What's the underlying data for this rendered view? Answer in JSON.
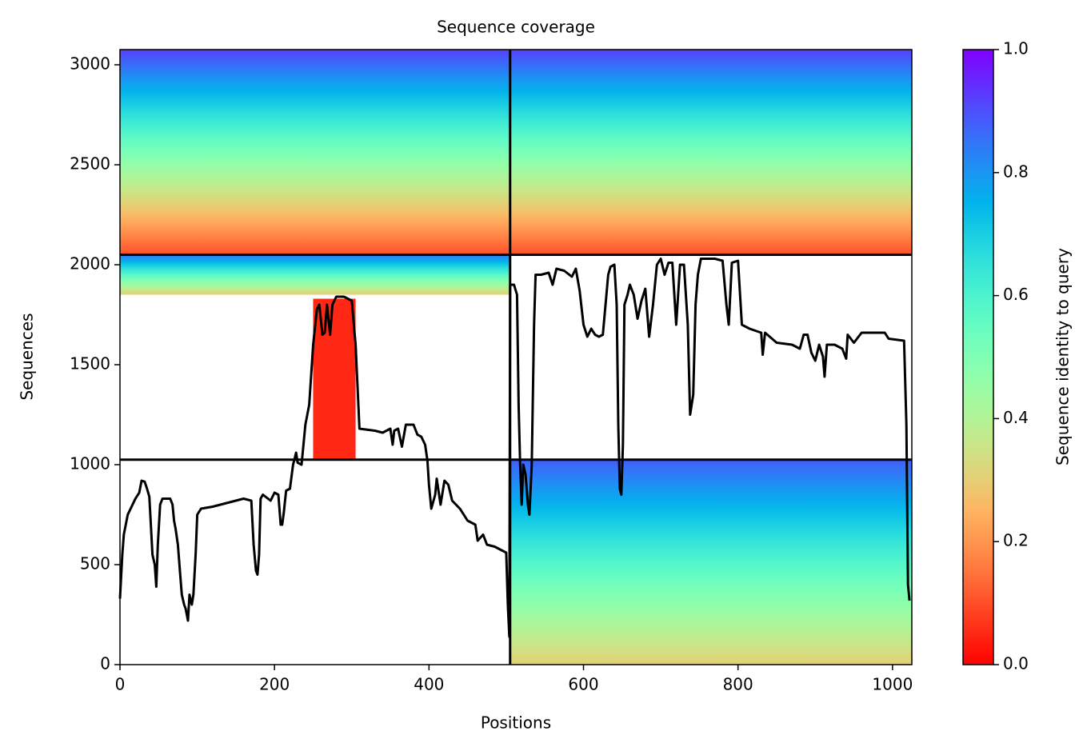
{
  "chart_data": {
    "type": "coverage",
    "title": "Sequence coverage",
    "xlabel": "Positions",
    "ylabel": "Sequences",
    "xlim": [
      0,
      1025
    ],
    "ylim": [
      0,
      3076
    ],
    "xticks": [
      0,
      200,
      400,
      600,
      800,
      1000
    ],
    "yticks": [
      0,
      500,
      1000,
      1500,
      2000,
      2500,
      3000
    ],
    "colormap": "rainbow_r",
    "colorbar": {
      "label": "Sequence identity to query",
      "lim": [
        0,
        1
      ],
      "ticks": [
        {
          "value": 0,
          "label": "0.0"
        },
        {
          "value": 0.2,
          "label": "0.2"
        },
        {
          "value": 0.4,
          "label": "0.4"
        },
        {
          "value": 0.6,
          "label": "0.6"
        },
        {
          "value": 0.8,
          "label": "0.8"
        },
        {
          "value": 1,
          "label": "1.0"
        }
      ]
    },
    "blocks": [
      {
        "x": [
          0,
          505
        ],
        "y": [
          2050,
          3076
        ],
        "identity": [
          0.1,
          0.92
        ]
      },
      {
        "x": [
          505,
          1025
        ],
        "y": [
          2050,
          3076
        ],
        "identity": [
          0.1,
          0.92
        ]
      },
      {
        "x": [
          0,
          505
        ],
        "y": [
          1850,
          2050
        ],
        "identity": [
          0.3,
          0.85
        ]
      },
      {
        "x": [
          250,
          305
        ],
        "y": [
          1030,
          1830
        ],
        "identity": [
          0.05,
          0.05
        ]
      },
      {
        "x": [
          505,
          1025
        ],
        "y": [
          0,
          1025
        ],
        "identity": [
          0.3,
          0.88
        ]
      }
    ],
    "dividers": {
      "x": [
        505
      ],
      "y": [
        1025,
        2050
      ]
    },
    "series": [
      {
        "name": "coverage",
        "color": "#000000",
        "x": [
          0,
          3,
          5,
          10,
          20,
          25,
          28,
          32,
          35,
          38,
          40,
          42,
          45,
          47,
          49,
          52,
          55,
          60,
          65,
          68,
          70,
          72,
          75,
          78,
          80,
          83,
          85,
          88,
          90,
          93,
          95,
          98,
          100,
          105,
          120,
          140,
          160,
          170,
          173,
          176,
          178,
          180,
          182,
          185,
          195,
          200,
          205,
          208,
          210,
          212,
          215,
          220,
          224,
          228,
          230,
          235,
          240,
          245,
          250,
          255,
          258,
          262,
          265,
          268,
          272,
          275,
          280,
          290,
          300,
          305,
          310,
          330,
          340,
          350,
          353,
          355,
          360,
          365,
          370,
          380,
          385,
          390,
          395,
          398,
          400,
          403,
          408,
          410,
          415,
          420,
          425,
          430,
          440,
          450,
          460,
          463,
          470,
          475,
          485,
          495,
          500,
          502,
          504,
          505,
          510,
          514,
          516,
          518,
          520,
          522,
          525,
          528,
          530,
          533,
          536,
          538,
          545,
          555,
          560,
          565,
          575,
          585,
          590,
          595,
          600,
          605,
          610,
          615,
          620,
          625,
          632,
          635,
          640,
          643,
          645,
          647,
          649,
          651,
          653,
          657,
          660,
          665,
          670,
          675,
          680,
          685,
          690,
          695,
          700,
          705,
          710,
          715,
          720,
          725,
          730,
          735,
          738,
          742,
          745,
          748,
          752,
          770,
          780,
          785,
          788,
          792,
          800,
          805,
          815,
          830,
          832,
          835,
          850,
          870,
          880,
          885,
          890,
          895,
          900,
          905,
          910,
          912,
          915,
          925,
          935,
          940,
          942,
          950,
          960,
          990,
          995,
          1015,
          1018,
          1020,
          1022
        ],
        "values": [
          330,
          550,
          650,
          750,
          830,
          860,
          920,
          915,
          880,
          840,
          700,
          550,
          500,
          390,
          600,
          800,
          830,
          830,
          830,
          800,
          720,
          680,
          600,
          450,
          350,
          300,
          280,
          220,
          350,
          300,
          350,
          560,
          750,
          780,
          790,
          810,
          830,
          820,
          600,
          470,
          450,
          550,
          830,
          850,
          820,
          860,
          850,
          700,
          700,
          760,
          870,
          880,
          1000,
          1060,
          1010,
          1000,
          1200,
          1300,
          1600,
          1780,
          1800,
          1650,
          1660,
          1800,
          1650,
          1800,
          1840,
          1840,
          1820,
          1600,
          1180,
          1170,
          1160,
          1180,
          1100,
          1170,
          1180,
          1090,
          1200,
          1200,
          1150,
          1140,
          1100,
          1020,
          900,
          780,
          850,
          930,
          800,
          920,
          900,
          820,
          780,
          720,
          700,
          620,
          650,
          600,
          590,
          570,
          560,
          300,
          140,
          1900,
          1900,
          1850,
          1300,
          1000,
          800,
          1000,
          950,
          800,
          750,
          1000,
          1700,
          1950,
          1950,
          1960,
          1900,
          1980,
          1970,
          1940,
          1980,
          1870,
          1700,
          1640,
          1680,
          1650,
          1640,
          1650,
          1950,
          1990,
          2000,
          1800,
          1200,
          880,
          850,
          1100,
          1800,
          1850,
          1900,
          1850,
          1730,
          1820,
          1880,
          1640,
          1800,
          2000,
          2030,
          1950,
          2010,
          2010,
          1700,
          2000,
          2000,
          1700,
          1250,
          1350,
          1800,
          1950,
          2030,
          2030,
          2020,
          1800,
          1700,
          2010,
          2020,
          1700,
          1680,
          1660,
          1550,
          1660,
          1610,
          1600,
          1580,
          1650,
          1650,
          1560,
          1520,
          1600,
          1540,
          1440,
          1600,
          1600,
          1580,
          1530,
          1650,
          1610,
          1660,
          1660,
          1630,
          1620,
          1200,
          400,
          320
        ]
      }
    ]
  }
}
